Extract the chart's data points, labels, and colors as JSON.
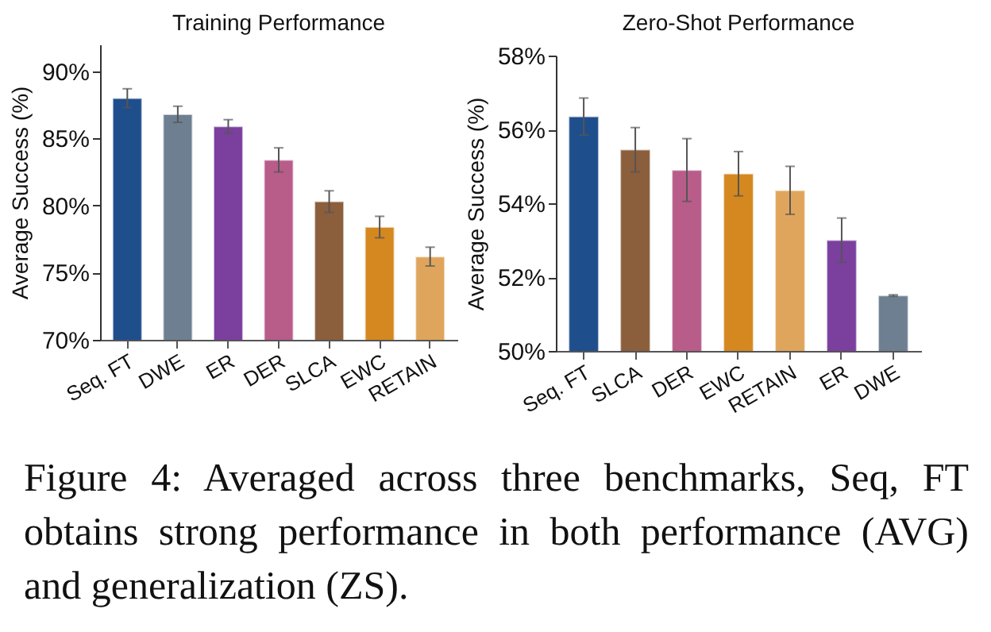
{
  "chart_data": [
    {
      "type": "bar",
      "title": "Training Performance",
      "ylabel": "Average Success (%)",
      "categories": [
        "Seq. FT",
        "DWE",
        "ER",
        "DER",
        "SLCA",
        "EWC",
        "RETAIN"
      ],
      "values": [
        88.0,
        86.8,
        85.9,
        83.4,
        80.3,
        78.4,
        76.2
      ],
      "errors": [
        0.7,
        0.6,
        0.5,
        0.9,
        0.8,
        0.8,
        0.7
      ],
      "colors": [
        "#1f4e8c",
        "#6e7f91",
        "#7b3f9e",
        "#b85c8a",
        "#8b5e3c",
        "#d4881f",
        "#e0a55c"
      ],
      "ylim": [
        70,
        92
      ],
      "yticks": [
        {
          "value": 70,
          "label": "70%"
        },
        {
          "value": 75,
          "label": "75%"
        },
        {
          "value": 80,
          "label": "80%"
        },
        {
          "value": 85,
          "label": "85%"
        },
        {
          "value": 90,
          "label": "90%"
        }
      ],
      "annotations": [
        "Figure 4: Averaged across three benchmarks, Seq, FT obtains strong performance in both performance (AVG) and generalization (ZS)."
      ]
    },
    {
      "type": "bar",
      "title": "Zero-Shot Performance",
      "ylabel": "Average Success (%)",
      "categories": [
        "Seq. FT",
        "SLCA",
        "DER",
        "EWC",
        "RETAIN",
        "ER",
        "DWE"
      ],
      "values": [
        56.35,
        55.45,
        54.9,
        54.8,
        54.35,
        53.0,
        51.5
      ],
      "errors": [
        0.5,
        0.6,
        0.85,
        0.6,
        0.65,
        0.6,
        0.02
      ],
      "colors": [
        "#1f4e8c",
        "#8b5e3c",
        "#b85c8a",
        "#d4881f",
        "#e0a55c",
        "#7b3f9e",
        "#6e7f91"
      ],
      "ylim": [
        50,
        58
      ],
      "yticks": [
        {
          "value": 50,
          "label": "50%"
        },
        {
          "value": 52,
          "label": "52%"
        },
        {
          "value": 54,
          "label": "54%"
        },
        {
          "value": 56,
          "label": "56%"
        },
        {
          "value": 58,
          "label": "58%"
        }
      ]
    }
  ]
}
